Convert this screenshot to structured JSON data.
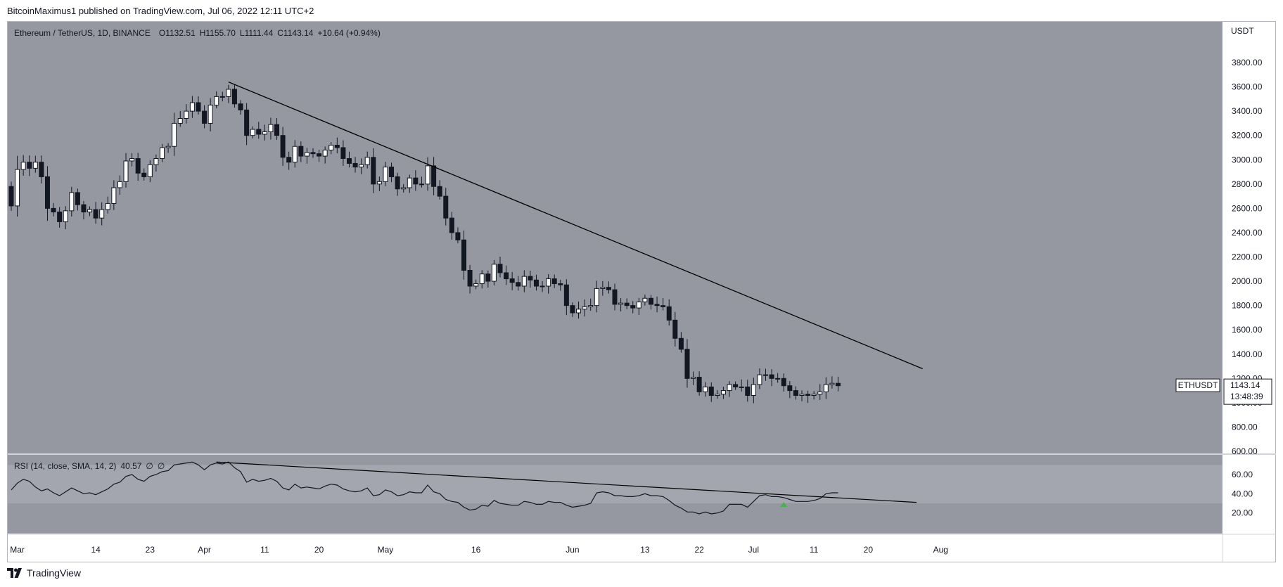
{
  "header": {
    "published_text": "BitcoinMaximus1 published on TradingView.com, Jul 06, 2022 12:11 UTC+2"
  },
  "legend": {
    "symbol_line": "Ethereum / TetherUS, 1D, BINANCE",
    "open_label": "O",
    "open": "1132.51",
    "high_label": "H",
    "high": "1155.70",
    "low_label": "L",
    "low": "1111.44",
    "close_label": "C",
    "close": "1143.14",
    "change": "+10.64 (+0.94%)"
  },
  "rsi_legend": {
    "title": "RSI (14, close, SMA, 14, 2)",
    "value": "40.57",
    "na1": "∅",
    "na2": "∅"
  },
  "axis": {
    "currency": "USDT",
    "ticker_tag": "ETHUSDT",
    "last_price": "1143.14",
    "countdown": "13:48:39"
  },
  "footer": {
    "brand": "TradingView"
  },
  "colors": {
    "pane_bg": "#9598a1",
    "rsi_band": "#a3a6af",
    "up_candle": "#ffffff",
    "down_candle": "#131722",
    "trendline": "#000000",
    "arrow": "#4caf50"
  },
  "chart_data": [
    {
      "type": "candlestick",
      "title": "Ethereum / TetherUS, 1D, BINANCE",
      "ylabel": "USDT",
      "ylim": [
        600,
        3900
      ],
      "y_ticks": [
        600,
        800,
        1000,
        1200,
        1400,
        1600,
        1800,
        2000,
        2200,
        2400,
        2600,
        2800,
        3000,
        3200,
        3400,
        3600,
        3800
      ],
      "y_tick_labels": [
        "600.00",
        "800.00",
        "1000.00",
        "1200.00",
        "1400.00",
        "1600.00",
        "1800.00",
        "2000.00",
        "2200.00",
        "2400.00",
        "2600.00",
        "2800.00",
        "3000.00",
        "3200.00",
        "3400.00",
        "3600.00",
        "3800.00"
      ],
      "x_tick_labels": [
        "Mar",
        "14",
        "23",
        "Apr",
        "11",
        "20",
        "May",
        "16",
        "Jun",
        "13",
        "22",
        "Jul",
        "11",
        "20",
        "Aug"
      ],
      "x_tick_days": [
        1,
        14,
        23,
        32,
        42,
        51,
        62,
        77,
        93,
        105,
        114,
        123,
        133,
        142,
        154
      ],
      "series": [
        {
          "start_day": 0,
          "close_values": [
            2620,
            2920,
            2980,
            2930,
            2980,
            2860,
            2600,
            2570,
            2490,
            2580,
            2730,
            2630,
            2570,
            2590,
            2520,
            2590,
            2640,
            2770,
            2820,
            2990,
            3010,
            2890,
            2860,
            2960,
            3010,
            3100,
            3110,
            3300,
            3340,
            3400,
            3470,
            3400,
            3300,
            3450,
            3520,
            3520,
            3580,
            3460,
            3410,
            3200,
            3250,
            3210,
            3230,
            3290,
            3200,
            3020,
            2980,
            3110,
            3030,
            3060,
            3050,
            3030,
            3080,
            3120,
            3100,
            3010,
            2970,
            2940,
            2960,
            3020,
            2800,
            2820,
            2940,
            2860,
            2760,
            2770,
            2850,
            2800,
            2800,
            2950,
            2780,
            2700,
            2520,
            2400,
            2340,
            2090,
            1960,
            1980,
            2060,
            2000,
            2140,
            2070,
            2020,
            1990,
            1960,
            2040,
            2010,
            1960,
            1960,
            2020,
            1980,
            1970,
            1800,
            1740,
            1770,
            1790,
            1800,
            1940,
            1950,
            1930,
            1810,
            1820,
            1800,
            1780,
            1830,
            1860,
            1810,
            1800,
            1790,
            1680,
            1530,
            1440,
            1200,
            1210,
            1090,
            1130,
            1060,
            1070,
            1100,
            1150,
            1130,
            1130,
            1060,
            1150,
            1230,
            1230,
            1200,
            1200,
            1140,
            1100,
            1060,
            1070,
            1060,
            1070,
            1090,
            1150,
            1160,
            1140
          ]
        }
      ],
      "trendline": {
        "from": {
          "day": 36,
          "value": 3640
        },
        "to": {
          "day": 151,
          "value": 1280
        }
      }
    },
    {
      "type": "line",
      "title": "RSI (14, close, SMA, 14, 2)",
      "ylim": [
        10,
        75
      ],
      "y_ticks": [
        20,
        40,
        60
      ],
      "y_tick_labels": [
        "20.00",
        "40.00",
        "60.00"
      ],
      "band": [
        30,
        70
      ],
      "series": [
        {
          "name": "RSI",
          "start_day": 0,
          "values": [
            44,
            51,
            55,
            53,
            47,
            43,
            45,
            41,
            38,
            42,
            46,
            43,
            40,
            41,
            39,
            42,
            45,
            50,
            52,
            58,
            60,
            55,
            53,
            58,
            60,
            63,
            64,
            70,
            71,
            72,
            73,
            70,
            65,
            70,
            72,
            71,
            73,
            67,
            63,
            52,
            55,
            53,
            54,
            56,
            53,
            46,
            44,
            50,
            46,
            47,
            46,
            45,
            48,
            50,
            49,
            45,
            43,
            42,
            43,
            46,
            38,
            39,
            44,
            42,
            38,
            39,
            42,
            41,
            41,
            49,
            42,
            40,
            34,
            32,
            31,
            26,
            23,
            24,
            28,
            27,
            33,
            30,
            29,
            28,
            28,
            32,
            31,
            29,
            29,
            32,
            31,
            31,
            28,
            26,
            27,
            28,
            30,
            41,
            42,
            41,
            38,
            38,
            37,
            37,
            38,
            40,
            38,
            38,
            37,
            33,
            28,
            25,
            21,
            21,
            19,
            21,
            19,
            20,
            22,
            29,
            29,
            29,
            26,
            32,
            38,
            39,
            37,
            37,
            36,
            34,
            32,
            32,
            32,
            33,
            35,
            40,
            41,
            41
          ]
        }
      ],
      "trendline": {
        "from": {
          "day": 34,
          "value": 73
        },
        "to": {
          "day": 150,
          "value": 31
        }
      },
      "annotations": [
        {
          "type": "arrow-up",
          "day": 128,
          "value": 27
        }
      ]
    }
  ]
}
